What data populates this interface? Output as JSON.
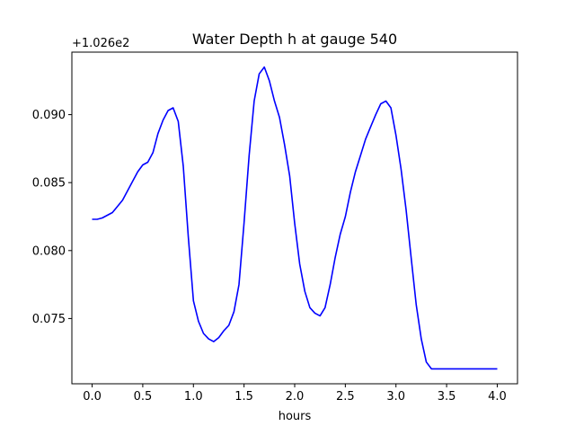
{
  "chart_data": {
    "type": "line",
    "title": "Water Depth h at gauge 540",
    "xlabel": "hours",
    "ylabel": "",
    "offset_label": "+1.026e2",
    "xlim": [
      -0.2,
      4.2
    ],
    "ylim": [
      0.0702,
      0.0946
    ],
    "xticks": [
      0.0,
      0.5,
      1.0,
      1.5,
      2.0,
      2.5,
      3.0,
      3.5,
      4.0
    ],
    "xtick_labels": [
      "0.0",
      "0.5",
      "1.0",
      "1.5",
      "2.0",
      "2.5",
      "3.0",
      "3.5",
      "4.0"
    ],
    "yticks": [
      0.075,
      0.08,
      0.085,
      0.09
    ],
    "ytick_labels": [
      "0.075",
      "0.080",
      "0.085",
      "0.090"
    ],
    "grid": false,
    "series": [
      {
        "color": "#0000ff",
        "x": [
          0.0,
          0.05,
          0.1,
          0.2,
          0.3,
          0.4,
          0.45,
          0.5,
          0.55,
          0.6,
          0.65,
          0.7,
          0.75,
          0.8,
          0.85,
          0.9,
          0.95,
          1.0,
          1.05,
          1.1,
          1.15,
          1.2,
          1.25,
          1.3,
          1.35,
          1.4,
          1.45,
          1.5,
          1.55,
          1.6,
          1.65,
          1.7,
          1.75,
          1.8,
          1.85,
          1.9,
          1.95,
          2.0,
          2.05,
          2.1,
          2.15,
          2.2,
          2.25,
          2.3,
          2.35,
          2.4,
          2.45,
          2.5,
          2.55,
          2.6,
          2.65,
          2.7,
          2.75,
          2.8,
          2.85,
          2.9,
          2.95,
          3.0,
          3.05,
          3.1,
          3.15,
          3.2,
          3.25,
          3.3,
          3.35,
          3.4,
          3.45,
          3.5,
          3.55,
          3.6,
          3.65,
          3.7,
          3.75,
          3.8,
          3.85,
          3.9,
          3.95,
          4.0
        ],
        "y": [
          0.0823,
          0.0823,
          0.0824,
          0.0828,
          0.0837,
          0.0851,
          0.0858,
          0.0863,
          0.0865,
          0.0872,
          0.0886,
          0.0896,
          0.0903,
          0.0905,
          0.0895,
          0.0862,
          0.081,
          0.0763,
          0.0748,
          0.0739,
          0.0735,
          0.0733,
          0.0736,
          0.0741,
          0.0745,
          0.0755,
          0.0775,
          0.082,
          0.087,
          0.091,
          0.093,
          0.0935,
          0.0925,
          0.091,
          0.0898,
          0.0878,
          0.0855,
          0.082,
          0.079,
          0.077,
          0.0758,
          0.0754,
          0.0752,
          0.0758,
          0.0775,
          0.0795,
          0.0812,
          0.0825,
          0.0843,
          0.0858,
          0.087,
          0.0882,
          0.0891,
          0.09,
          0.0908,
          0.091,
          0.0905,
          0.0885,
          0.086,
          0.083,
          0.0795,
          0.076,
          0.0735,
          0.0718,
          0.0713,
          0.0713,
          0.0713,
          0.0713,
          0.0713,
          0.0713,
          0.0713,
          0.0713,
          0.0713,
          0.0713,
          0.0713,
          0.0713,
          0.0713,
          0.0713
        ]
      }
    ]
  }
}
